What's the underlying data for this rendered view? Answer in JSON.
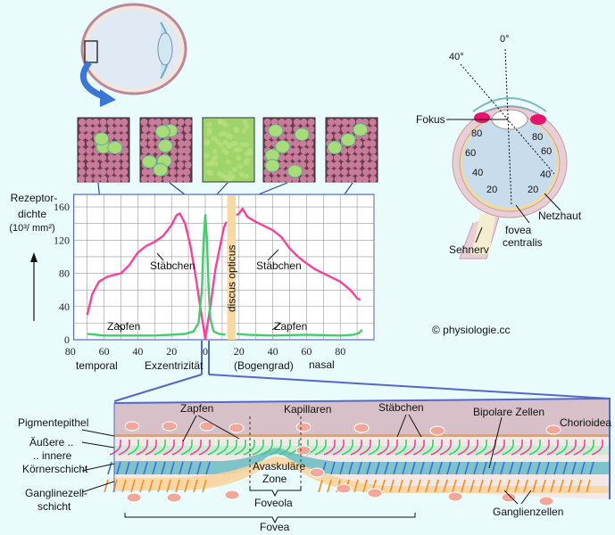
{
  "colors": {
    "background": "#e9fbfb",
    "rods": "#ff3d9a",
    "cones": "#3ccf6a",
    "bipolar": "#3b6fe0",
    "ganglion": "#ff8a1f",
    "chorioidea": "#d8c0c8",
    "discus": "#f8d9a0",
    "frame": "#5566cc"
  },
  "top_eye": {
    "arrow_icon": "curved-arrow-blue"
  },
  "mosaics": [
    {
      "type": "rods-with-few-cones"
    },
    {
      "type": "rods-with-cones"
    },
    {
      "type": "cones-only"
    },
    {
      "type": "rods-with-cones"
    },
    {
      "type": "rods-with-few-cones"
    }
  ],
  "chart_data": {
    "type": "line",
    "ylabel_lines": [
      "Rezeptor-",
      "dichte",
      "(10³/ mm²)"
    ],
    "xlabel": "Exzentrizität",
    "xlabel_unit": "(Bogengrad)",
    "x_side_labels": {
      "left": "temporal",
      "right": "nasal"
    },
    "x_tick_labels": [
      "80",
      "60",
      "40",
      "20",
      "0",
      "20",
      "40",
      "60",
      "80"
    ],
    "x_ticks": [
      -80,
      -60,
      -40,
      -20,
      0,
      20,
      40,
      60,
      80
    ],
    "y_ticks": [
      0,
      40,
      80,
      120,
      160
    ],
    "xlim": [
      -78,
      100
    ],
    "ylim": [
      0,
      175
    ],
    "grid": true,
    "discus": {
      "label": "discus opticus",
      "from": 13,
      "to": 18
    },
    "series": [
      {
        "name": "Stäbchen",
        "color": "#ff3d9a",
        "segments": [
          [
            [
              -70,
              30
            ],
            [
              -67,
              55
            ],
            [
              -63,
              70
            ],
            [
              -58,
              76
            ],
            [
              -50,
              80
            ],
            [
              -45,
              90
            ],
            [
              -40,
              105
            ],
            [
              -35,
              113
            ],
            [
              -30,
              118
            ],
            [
              -25,
              125
            ],
            [
              -20,
              138
            ],
            [
              -17,
              150
            ],
            [
              -15,
              152
            ],
            [
              -12,
              140
            ],
            [
              -9,
              115
            ],
            [
              -6,
              80
            ],
            [
              -3,
              40
            ],
            [
              0,
              1
            ],
            [
              3,
              40
            ],
            [
              6,
              85
            ],
            [
              9,
              115
            ],
            [
              11,
              135
            ],
            [
              12.5,
              142
            ]
          ],
          [
            [
              18.5,
              150
            ],
            [
              20,
              152
            ],
            [
              22,
              158
            ],
            [
              25,
              148
            ],
            [
              30,
              142
            ],
            [
              40,
              132
            ],
            [
              45,
              124
            ],
            [
              50,
              110
            ],
            [
              55,
              100
            ],
            [
              60,
              92
            ],
            [
              65,
              85
            ],
            [
              70,
              80
            ],
            [
              80,
              70
            ],
            [
              86,
              60
            ],
            [
              90,
              50
            ],
            [
              92,
              48
            ]
          ]
        ]
      },
      {
        "name": "Zapfen",
        "color": "#3ccf6a",
        "segments": [
          [
            [
              -70,
              7
            ],
            [
              -60,
              5
            ],
            [
              -50,
              5
            ],
            [
              -40,
              5
            ],
            [
              -30,
              5
            ],
            [
              -20,
              6
            ],
            [
              -12,
              7
            ],
            [
              -7,
              10
            ],
            [
              -4,
              20
            ],
            [
              -2,
              60
            ],
            [
              -1,
              120
            ],
            [
              0,
              150
            ],
            [
              1,
              120
            ],
            [
              2,
              60
            ],
            [
              3,
              25
            ],
            [
              5,
              10
            ],
            [
              8,
              7
            ],
            [
              12,
              6
            ]
          ],
          [
            [
              18.5,
              7
            ],
            [
              25,
              6
            ],
            [
              40,
              5
            ],
            [
              60,
              6
            ],
            [
              80,
              5
            ],
            [
              88,
              6
            ],
            [
              91,
              8
            ],
            [
              93,
              12
            ]
          ]
        ]
      }
    ],
    "series_labels": {
      "rods_left": "Stäbchen",
      "rods_right": "Stäbchen",
      "cones_left": "Zapfen",
      "cones_right": "Zapfen"
    }
  },
  "right_eye": {
    "angle_0": "0°",
    "angle_40": "40°",
    "focus": "Fokus",
    "left_ticks": [
      "80",
      "60",
      "40",
      "20"
    ],
    "right_ticks": [
      "80",
      "60",
      "40",
      "20"
    ],
    "retina": "Netzhaut",
    "fovea_line1": "fovea",
    "fovea_line2": "centralis",
    "optic_nerve": "Sehnerv"
  },
  "copyright": "© physiologie.cc",
  "section": {
    "left_labels": [
      "Pigmentepithel",
      "Äußere ..",
      ".. innere",
      "Körnerschicht",
      "Ganglinezell-",
      "schicht"
    ],
    "cones": "Zapfen",
    "capillaries": "Kapillaren",
    "rods": "Stäbchen",
    "bipolar": "Bipolare Zellen",
    "chorioidea": "Chorioidea",
    "avascular_line1": "Avaskuläre",
    "avascular_line2": "Zone",
    "foveola": "Foveola",
    "fovea": "Fovea",
    "ganglion": "Ganglienzellen"
  }
}
